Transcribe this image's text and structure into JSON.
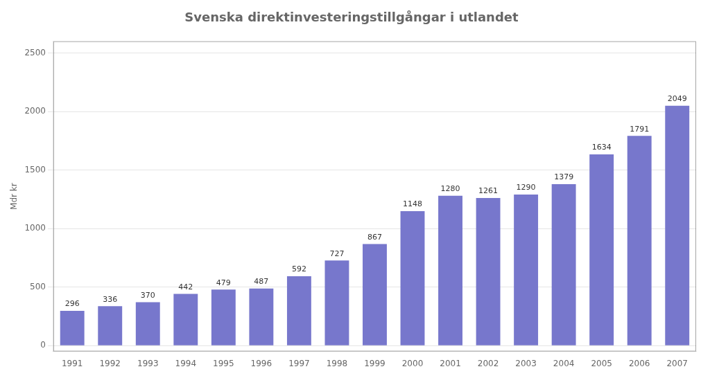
{
  "chart_data": {
    "type": "bar",
    "title": "Svenska direktinvesteringstillgångar i utlandet",
    "ylabel": "Mdr kr",
    "categories": [
      "1991",
      "1992",
      "1993",
      "1994",
      "1995",
      "1996",
      "1997",
      "1998",
      "1999",
      "2000",
      "2001",
      "2002",
      "2003",
      "2004",
      "2005",
      "2006",
      "2007"
    ],
    "values": [
      296,
      336,
      370,
      442,
      479,
      487,
      592,
      727,
      867,
      1148,
      1280,
      1261,
      1290,
      1379,
      1634,
      1791,
      2049
    ],
    "color": "#7777cc",
    "ylim": [
      -50,
      2600
    ],
    "yticks": [
      0,
      500,
      1000,
      1500,
      2000,
      2500
    ],
    "grid": true,
    "data_labels": true
  }
}
